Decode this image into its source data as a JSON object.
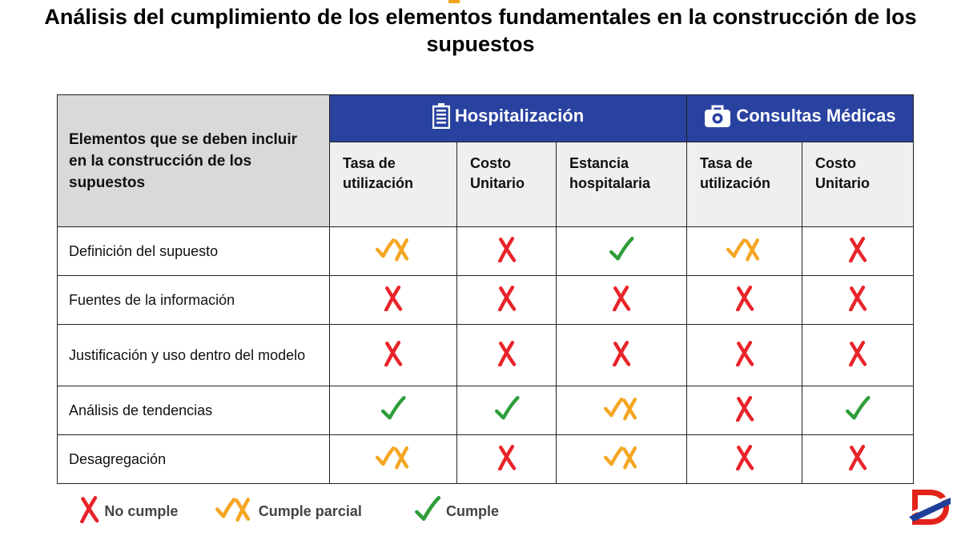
{
  "title": "Análisis del cumplimiento de los elementos fundamentales en la construcción de los supuestos",
  "colors": {
    "header_blue": "#2942a0",
    "corner_gray": "#d9d9d9",
    "subheader_gray": "#efefef",
    "no_cumple": "#e8242a",
    "parcial": "#f5a623",
    "cumple": "#2f9e3a"
  },
  "table": {
    "corner_label": "Elementos que se deben incluir en la construcción de los supuestos",
    "groups": [
      {
        "label": "Hospitalización",
        "icon": "hospital-building-icon"
      },
      {
        "label": "Consultas Médicas",
        "icon": "medical-bag-icon"
      }
    ],
    "columns": [
      "Tasa de utilización",
      "Costo Unitario",
      "Estancia hospitalaria",
      "Tasa de utilización",
      "Costo Unitario"
    ],
    "rows": [
      {
        "label": "Definición del supuesto",
        "marks": [
          "parcial",
          "no",
          "si",
          "parcial",
          "no"
        ]
      },
      {
        "label": "Fuentes de la información",
        "marks": [
          "no",
          "no",
          "no",
          "no",
          "no"
        ]
      },
      {
        "label": "Justificación y uso dentro del modelo",
        "marks": [
          "no",
          "no",
          "no",
          "no",
          "no"
        ]
      },
      {
        "label": "Análisis de tendencias",
        "marks": [
          "si",
          "si",
          "parcial",
          "no",
          "si"
        ]
      },
      {
        "label": "Desagregación",
        "marks": [
          "parcial",
          "no",
          "parcial",
          "no",
          "no"
        ]
      }
    ]
  },
  "legend": {
    "no_cumple": "No cumple",
    "parcial": "Cumple parcial",
    "cumple": "Cumple"
  }
}
